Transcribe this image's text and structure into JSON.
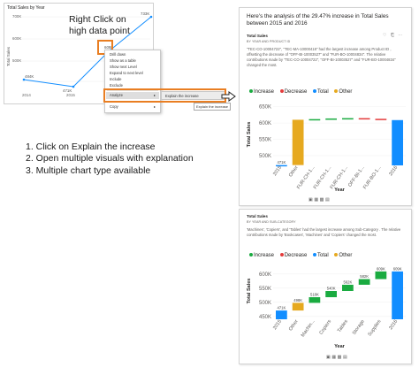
{
  "callout": {
    "line1": "Right Click on",
    "line2": "high data point"
  },
  "line_visual": {
    "title": "Total Sales by Year",
    "ylabel": "Total Sales",
    "yticks": [
      "700K",
      "600K",
      "500K"
    ],
    "xticks": [
      "2014",
      "2015",
      "2016"
    ],
    "point_labels": [
      "484K",
      "471K",
      "609K",
      "733K"
    ]
  },
  "context_menu": {
    "items": [
      "Drill down",
      "Show as a table",
      "Show next Level",
      "Expand to next level",
      "Include",
      "Exclude",
      "Analyze",
      "Copy"
    ],
    "analyze_label": "Analyze",
    "copy_label": "Copy",
    "submenu_label": "Explain the increase",
    "tooltip": "Explain the increase"
  },
  "steps": [
    "1. Click on Explain the increase",
    "2. Open multiple visuals with explanation",
    "3. Multiple chart type available"
  ],
  "panel_top": {
    "heading": "Here's the analysis of the 29.47% increase in Total Sales between 2015 and 2016",
    "title": "Total Sales",
    "subtitle": "BY YEAR AND PRODUCT ID",
    "description": "\"TEC-CO-10004722\", \"TEC-MA-10000418\" had the largest increase among Product ID , offsetting the decrease of \"OFF-BI-10003527\" and \"FUR-BO-10004834\". The relative contributions made by \"TEC-CO-10004722\", \"OFF-BI-10003527\" and \"FUR-BO-10004834\" changed the most.",
    "toolbar": "♡ ⎗ ⋯"
  },
  "panel_bot": {
    "title": "Total Sales",
    "subtitle": "BY YEAR AND SUB-CATEGORY",
    "description": "'Machines', 'Copiers', and 'Tables' had the largest increase among Sub-Category . The relative contributions made by 'Bookcases', 'Machines' and 'Copiers' changed the most."
  },
  "legend": {
    "increase": "Increase",
    "decrease": "Decrease",
    "total": "Total",
    "other": "Other"
  },
  "colors": {
    "increase": "#1aab40",
    "decrease": "#e33b3b",
    "total": "#118dff",
    "other": "#e6a91f",
    "orange": "#e97e22"
  },
  "chart_data": [
    {
      "type": "bar",
      "title": "Total Sales",
      "ylabel": "Total Sales",
      "xlabel": "Year",
      "yticks": [
        "650K",
        "600K",
        "550K",
        "500K"
      ],
      "ylim": [
        470000,
        660000
      ],
      "categories": [
        "2015",
        "Other",
        "FUR-CH-1...",
        "FUR-CH-1...",
        "FUR-CH-1...",
        "OFF-BI-1...",
        "FUR-BO-1...",
        "2016"
      ],
      "values": [
        471000,
        610000,
        612000,
        614000,
        615000,
        613000,
        609000,
        609000
      ],
      "bases": [
        0,
        471000,
        610000,
        612000,
        614000,
        615000,
        613000,
        0
      ],
      "kinds": [
        "total",
        "other",
        "increase",
        "increase",
        "increase",
        "decrease",
        "decrease",
        "total"
      ],
      "data_labels": [
        "471K",
        "",
        "",
        "",
        "",
        "",
        "",
        ""
      ]
    },
    {
      "type": "bar",
      "title": "Total Sales",
      "ylabel": "Total Sales",
      "xlabel": "Year",
      "yticks": [
        "600K",
        "550K",
        "500K",
        "450K"
      ],
      "ylim": [
        440000,
        640000
      ],
      "categories": [
        "2015",
        "Other",
        "Machin...",
        "Copiers",
        "Tables",
        "Storage",
        "Supplies",
        "2016"
      ],
      "values": [
        471000,
        498000,
        518000,
        540000,
        562000,
        582000,
        609000,
        609000
      ],
      "bases": [
        0,
        471000,
        498000,
        518000,
        540000,
        562000,
        582000,
        0
      ],
      "kinds": [
        "total",
        "other",
        "increase",
        "increase",
        "increase",
        "increase",
        "increase",
        "total"
      ],
      "data_labels": [
        "471K",
        "498K",
        "518K",
        "540K",
        "562K",
        "582K",
        "609K",
        "609K"
      ]
    }
  ]
}
